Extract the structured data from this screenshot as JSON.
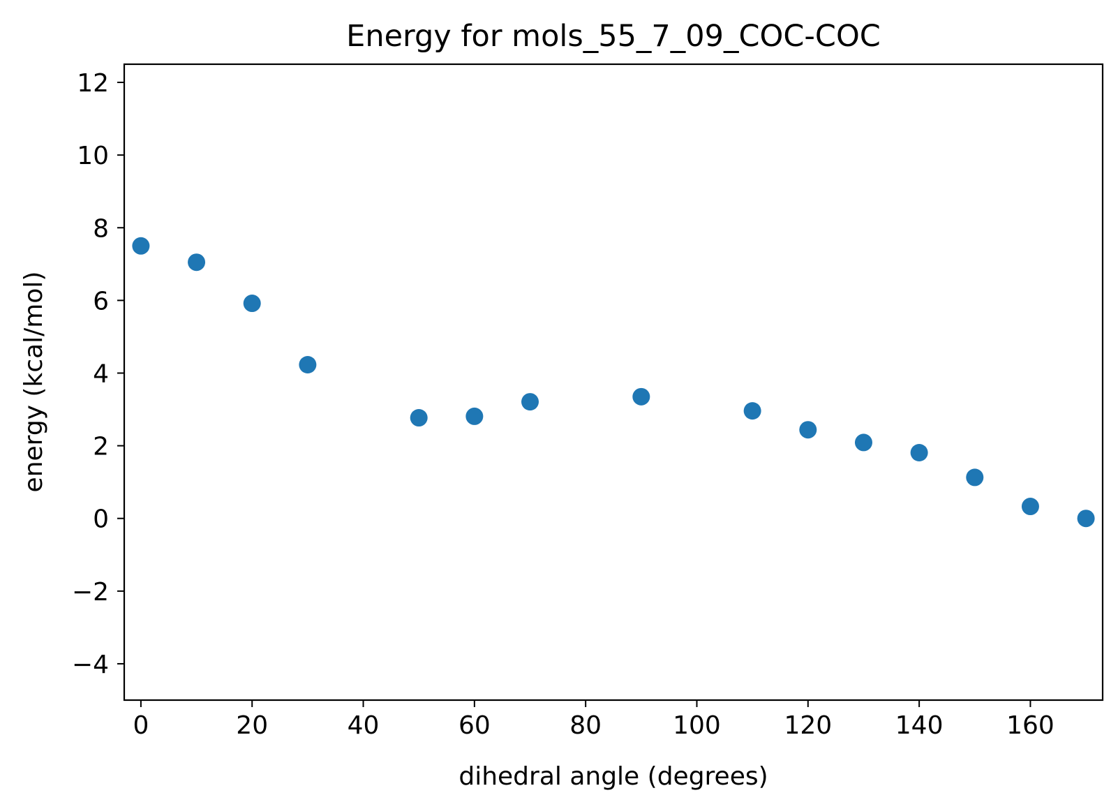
{
  "chart_data": {
    "type": "scatter",
    "title": "Energy for mols_55_7_09_COC-COC",
    "xlabel": "dihedral angle (degrees)",
    "ylabel": "energy (kcal/mol)",
    "xlim": [
      -3,
      173
    ],
    "ylim": [
      -5,
      12.5
    ],
    "xticks": [
      0,
      20,
      40,
      60,
      80,
      100,
      120,
      140,
      160
    ],
    "xtick_labels": [
      "0",
      "20",
      "40",
      "60",
      "80",
      "100",
      "120",
      "140",
      "160"
    ],
    "yticks": [
      -4,
      -2,
      0,
      2,
      4,
      6,
      8,
      10,
      12
    ],
    "ytick_labels": [
      "−4",
      "−2",
      "0",
      "2",
      "4",
      "6",
      "8",
      "10",
      "12"
    ],
    "grid": false,
    "series": [
      {
        "color": "#1f77b4",
        "x": [
          0,
          10,
          20,
          30,
          50,
          60,
          70,
          90,
          110,
          120,
          130,
          140,
          150,
          160,
          170
        ],
        "y": [
          7.5,
          7.05,
          5.92,
          4.23,
          2.77,
          2.81,
          3.21,
          3.35,
          2.96,
          2.44,
          2.09,
          1.81,
          1.13,
          0.33,
          0.0
        ]
      }
    ]
  }
}
